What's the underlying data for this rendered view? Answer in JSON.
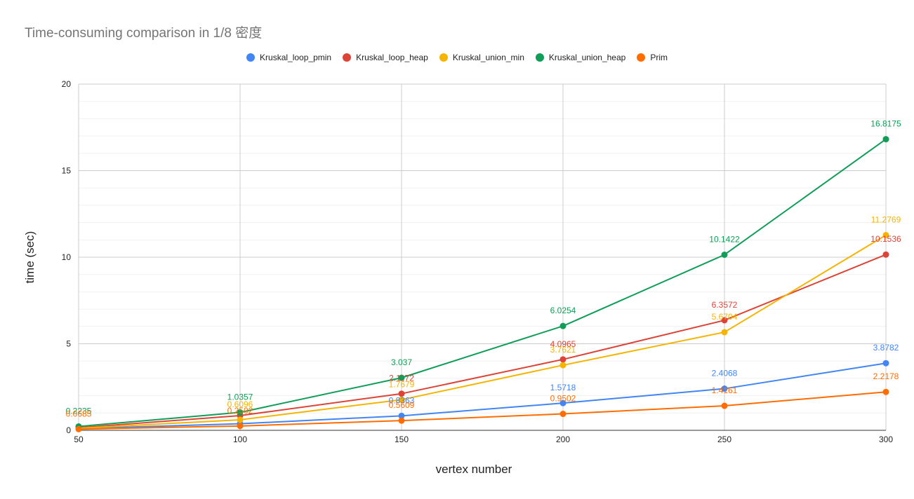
{
  "chart_data": {
    "type": "line",
    "title": "Time-consuming comparison in 1/8 密度",
    "xlabel": "vertex number",
    "ylabel": "time (sec)",
    "x": [
      50,
      100,
      150,
      200,
      250,
      300
    ],
    "x_tick_labels": [
      "50",
      "100",
      "150",
      "200",
      "250",
      "300"
    ],
    "y_tick_labels": [
      "0",
      "5",
      "10",
      "15",
      "20"
    ],
    "ylim": [
      0,
      20
    ],
    "grid": true,
    "legend_position": "top",
    "series": [
      {
        "name": "Kruskal_loop_pmin",
        "color": "#4285f4",
        "values": [
          0.1,
          0.38,
          0.8363,
          1.5718,
          2.4068,
          3.8782
        ],
        "labels": [
          "",
          "",
          "0.8363",
          "1.5718",
          "2.4068",
          "3.8782"
        ]
      },
      {
        "name": "Kruskal_loop_heap",
        "color": "#db4437",
        "values": [
          0.15,
          0.85,
          2.1172,
          4.0965,
          6.3572,
          10.1536
        ],
        "labels": [
          "",
          "",
          "2.1172",
          "4.0965",
          "6.3572",
          "10.1536"
        ]
      },
      {
        "name": "Kruskal_union_min",
        "color": "#f4b400",
        "values": [
          0.12,
          0.6096,
          1.7679,
          3.7621,
          5.6704,
          11.2769
        ],
        "labels": [
          "",
          "0.6096",
          "1.7679",
          "3.7621",
          "5.6704",
          "11.2769"
        ]
      },
      {
        "name": "Kruskal_union_heap",
        "color": "#0f9d58",
        "values": [
          0.2235,
          1.0357,
          3.037,
          6.0254,
          10.1422,
          16.8175
        ],
        "labels": [
          "0.2235",
          "1.0357",
          "3.037",
          "6.0254",
          "10.1422",
          "16.8175"
        ]
      },
      {
        "name": "Prim",
        "color": "#ff6d00",
        "values": [
          0.0685,
          0.2502,
          0.5609,
          0.9502,
          1.4161,
          2.2178
        ],
        "labels": [
          "0.0685",
          "0.2502",
          "0.5609",
          "0.9502",
          "1.4161",
          "2.2178"
        ]
      }
    ]
  }
}
